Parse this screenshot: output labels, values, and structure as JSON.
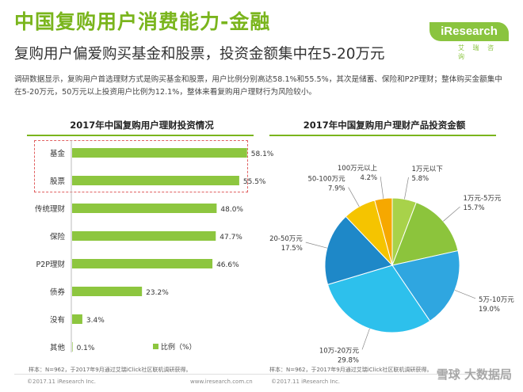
{
  "header": {
    "title": "中国复购用户消费能力-金融",
    "subtitle": "复购用户偏爱购买基金和股票，投资金额集中在5-20万元",
    "logo_text": "iResearch",
    "logo_sub": "艾 瑞 咨 询"
  },
  "description": "调研数据显示，复购用户首选理财方式是购买基金和股票，用户比例分别高达58.1%和55.5%，其次是储蓄、保险和P2P理财；整体购买金额集中在5-20万元，50万元以上投资用户比例为12.1%，整体来看复购用户理财行为风险较小。",
  "footer": {
    "note_left": "样本：N=962，于2017年9月通过艾瑞iClick社区联机调研获得。",
    "note_right": "样本：N=962，于2017年9月通过艾瑞iClick社区联机调研获得。",
    "copyright_left": "©2017.11 iResearch Inc.",
    "web_left": "www.iresearch.com.cn",
    "copyright_right": "©2017.11 iResearch Inc.",
    "watermark": "雪球 大数据局"
  },
  "colors": {
    "accent": "#7ab51d",
    "bar": "#8dc63f",
    "highlight_border": "#e06060"
  },
  "chart_data": [
    {
      "type": "bar",
      "orientation": "horizontal",
      "title": "2017年中国复购用户理财投资情况",
      "categories": [
        "基金",
        "股票",
        "传统理财",
        "保险",
        "P2P理财",
        "债券",
        "没有",
        "其他"
      ],
      "values": [
        58.1,
        55.5,
        48.0,
        47.7,
        46.6,
        23.2,
        3.4,
        0.1
      ],
      "value_labels": [
        "58.1%",
        "55.5%",
        "48.0%",
        "47.7%",
        "46.6%",
        "23.2%",
        "3.4%",
        "0.1%"
      ],
      "legend": "比例（%）",
      "xlim": [
        0,
        100
      ],
      "highlighted": [
        "基金",
        "股票"
      ]
    },
    {
      "type": "pie",
      "title": "2017年中国复购用户理财产品投资金额",
      "labels": [
        "1万元以下",
        "1万元-5万元",
        "5万-10万元",
        "10万-20万元",
        "20-50万元",
        "50-100万元",
        "100万元以上"
      ],
      "values": [
        5.8,
        15.7,
        19.0,
        29.8,
        17.5,
        7.9,
        4.2
      ],
      "value_labels": [
        "5.8%",
        "15.7%",
        "19.0%",
        "29.8%",
        "17.5%",
        "7.9%",
        "4.2%"
      ],
      "colors": [
        "#a8d24a",
        "#8cc43c",
        "#2fa6e0",
        "#2dc0ec",
        "#1e88c8",
        "#f5c400",
        "#f6a800"
      ]
    }
  ]
}
